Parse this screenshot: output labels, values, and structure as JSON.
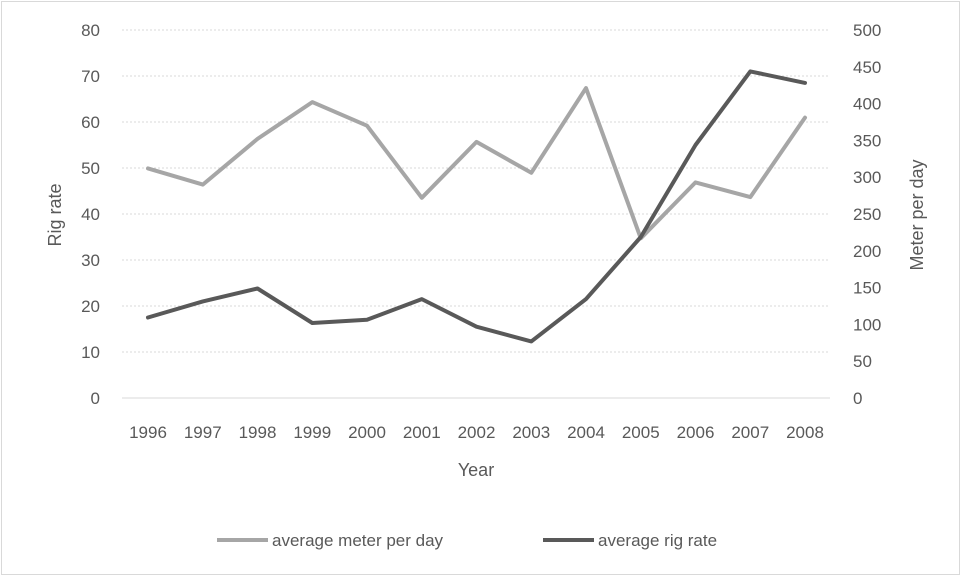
{
  "chart_data": {
    "type": "line",
    "x": [
      "1996",
      "1997",
      "1998",
      "1999",
      "2000",
      "2001",
      "2002",
      "2003",
      "2004",
      "2005",
      "2006",
      "2007",
      "2008"
    ],
    "xlabel": "Year",
    "ylabel_left": "Rig rate",
    "ylabel_right": "Meter  per day",
    "ylim_left": [
      0,
      80
    ],
    "ylim_right": [
      0,
      500
    ],
    "yticks_left": [
      "0",
      "10",
      "20",
      "30",
      "40",
      "50",
      "60",
      "70",
      "80"
    ],
    "yticks_right": [
      "0",
      "50",
      "100",
      "150",
      "200",
      "250",
      "300",
      "350",
      "400",
      "450",
      "500"
    ],
    "grid": true,
    "legend_position": "bottom",
    "series": [
      {
        "name": "average meter per day",
        "axis": "right",
        "color": "#a6a6a6",
        "values": [
          312,
          290,
          352,
          402,
          370,
          272,
          348,
          306,
          421,
          217,
          293,
          273,
          381
        ]
      },
      {
        "name": "average rig rate",
        "axis": "left",
        "color": "#595959",
        "values": [
          17.5,
          21,
          23.8,
          16.3,
          17,
          21.5,
          15.5,
          12.3,
          21.5,
          35,
          55,
          71,
          68.5
        ]
      }
    ]
  }
}
